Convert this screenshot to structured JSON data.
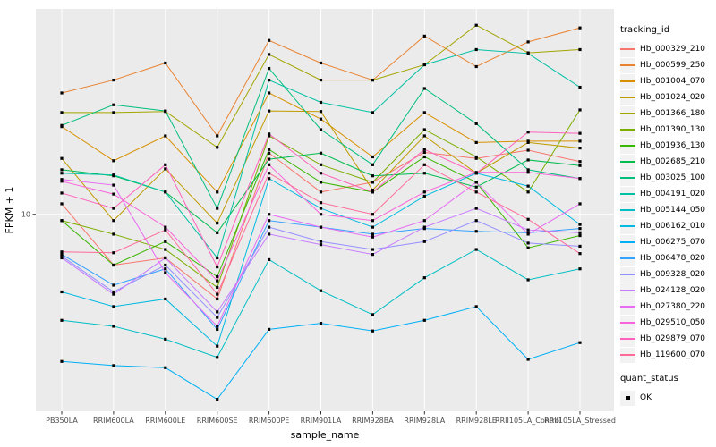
{
  "chart_data": {
    "type": "line",
    "title": "",
    "xlabel": "sample_name",
    "ylabel": "FPKM + 1",
    "y_scale": "log10",
    "y_tick_labels": [
      "10"
    ],
    "y_tick_values": [
      10
    ],
    "ylim_log10": [
      0.3,
      1.73
    ],
    "grid": "major-only",
    "panel_bg": "#EBEBEB",
    "grid_color": "#FFFFFF",
    "axis_text_color": "#4D4D4D",
    "point_shape": "black-square",
    "legend_position": "right",
    "categories": [
      "PB350LA",
      "RRIM600LA",
      "RRIM600LE",
      "RRIM600SE",
      "RRIM600PE",
      "RRIM901LA",
      "RRIM928BA",
      "RRIM928LA",
      "RRIM928LE",
      "RRII105LA_Control",
      "RRII105LA_Stressed"
    ],
    "series": [
      {
        "name": "Hb_000329_210",
        "color": "#F8766D",
        "values": [
          10.9,
          6.6,
          7.0,
          5.0,
          16.5,
          12.0,
          13.0,
          16.6,
          15.8,
          16.9,
          15.4
        ]
      },
      {
        "name": "Hb_000599_250",
        "color": "#EA8331",
        "values": [
          27,
          30,
          34.5,
          19,
          41.5,
          34.5,
          30,
          43,
          33.5,
          41,
          46
        ]
      },
      {
        "name": "Hb_001004_070",
        "color": "#D89000",
        "values": [
          20.5,
          15.5,
          19,
          12,
          27,
          21.8,
          16,
          23,
          18,
          18.2,
          18.2
        ]
      },
      {
        "name": "Hb_001024_020",
        "color": "#C09B00",
        "values": [
          15.8,
          9.5,
          14.5,
          9.3,
          23.3,
          23.2,
          12.2,
          19,
          14,
          18,
          17.2
        ]
      },
      {
        "name": "Hb_001366_180",
        "color": "#A3A500",
        "values": [
          23,
          23,
          23.2,
          17.3,
          37,
          30,
          30,
          34,
          47,
          37.5,
          38.5
        ]
      },
      {
        "name": "Hb_001390_130",
        "color": "#7CAE00",
        "values": [
          9.5,
          8.5,
          7.5,
          5.5,
          19,
          15,
          13,
          20,
          16,
          12,
          23.5
        ]
      },
      {
        "name": "Hb_001936_130",
        "color": "#39B600",
        "values": [
          9.5,
          6.6,
          8.0,
          6.0,
          17,
          13,
          12,
          16,
          13,
          7.6,
          8.4
        ]
      },
      {
        "name": "Hb_002685_210",
        "color": "#00BB4E",
        "values": [
          14.4,
          13.7,
          12,
          8.6,
          15.7,
          16.5,
          13.7,
          14,
          12.5,
          15.6,
          14.9
        ]
      },
      {
        "name": "Hb_003025_100",
        "color": "#00BF7D",
        "values": [
          20.7,
          24.5,
          23.3,
          10.5,
          33,
          20,
          15,
          28,
          21,
          14.4,
          13.4
        ]
      },
      {
        "name": "Hb_004191_020",
        "color": "#00C1A3",
        "values": [
          14,
          13.8,
          12,
          7,
          30,
          25,
          23,
          34,
          38.5,
          37.3,
          28.3
        ]
      },
      {
        "name": "Hb_005144_050",
        "color": "#00BFC4",
        "values": [
          4.2,
          4.0,
          3.6,
          3.1,
          6.9,
          5.35,
          4.4,
          5.95,
          7.5,
          5.85,
          6.4
        ]
      },
      {
        "name": "Hb_006162_010",
        "color": "#00BAE0",
        "values": [
          5.3,
          4.7,
          5.0,
          3.4,
          13.4,
          10.5,
          9.0,
          11.6,
          14,
          12.6,
          9.2
        ]
      },
      {
        "name": "Hb_006275_070",
        "color": "#00B0F6",
        "values": [
          3.0,
          2.9,
          2.85,
          2.2,
          3.9,
          4.1,
          3.85,
          4.2,
          4.7,
          3.05,
          3.5
        ]
      },
      {
        "name": "Hb_006478_020",
        "color": "#35A2FF",
        "values": [
          7.2,
          5.6,
          6.4,
          3.9,
          9.5,
          9.0,
          8.5,
          8.9,
          8.7,
          8.6,
          8.9
        ]
      },
      {
        "name": "Hb_009328_020",
        "color": "#9590FF",
        "values": [
          7.1,
          5.3,
          6.6,
          4.3,
          9.0,
          8.0,
          7.5,
          8.0,
          9.5,
          7.9,
          7.7
        ]
      },
      {
        "name": "Hb_024128_020",
        "color": "#C77CFF",
        "values": [
          7.0,
          5.2,
          7.0,
          4.5,
          8.5,
          7.8,
          7.2,
          9.0,
          10.5,
          8.8,
          8.6
        ]
      },
      {
        "name": "Hb_027380_220",
        "color": "#E76BF3",
        "values": [
          13.3,
          12.7,
          6.2,
          4.0,
          10,
          9.0,
          8.3,
          9.5,
          13,
          8.5,
          10.9
        ]
      },
      {
        "name": "Hb_029510_050",
        "color": "#FA62DB",
        "values": [
          13.1,
          11.8,
          9.0,
          5.8,
          15,
          10,
          9.5,
          12,
          14.1,
          14.1,
          13.4
        ]
      },
      {
        "name": "Hb_029879_070",
        "color": "#FF62BC",
        "values": [
          11.9,
          10.5,
          15,
          6.5,
          19.3,
          14,
          12,
          17,
          14,
          19.6,
          19.4
        ]
      },
      {
        "name": "Hb_119600_070",
        "color": "#FF6A98",
        "values": [
          7.35,
          7.3,
          8.8,
          5.2,
          14,
          11,
          10,
          15,
          12,
          9.6,
          7.25
        ]
      }
    ]
  },
  "legend": {
    "tracking_title": "tracking_id",
    "quant_title": "quant_status",
    "quant_items": [
      {
        "label": "OK"
      }
    ],
    "key_bg": "#F2F2F2"
  }
}
